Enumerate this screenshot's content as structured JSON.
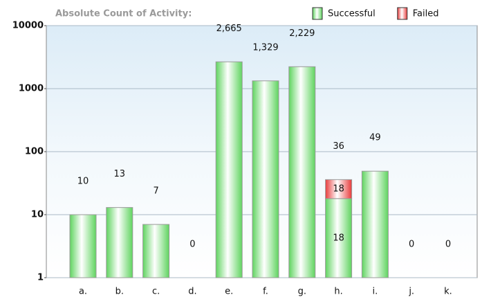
{
  "chart_data": {
    "type": "bar",
    "stacked": true,
    "log_scale": true,
    "title": "Absolute Count of Activity:",
    "categories": [
      "a.",
      "b.",
      "c.",
      "d.",
      "e.",
      "f.",
      "g.",
      "h.",
      "i.",
      "j.",
      "k."
    ],
    "series": [
      {
        "name": "Successful",
        "color": "#5fd45f",
        "values": [
          10,
          13,
          7,
          0,
          2665,
          1329,
          2229,
          18,
          49,
          0,
          0
        ],
        "value_labels": [
          null,
          null,
          null,
          null,
          null,
          null,
          null,
          "18",
          null,
          null,
          null
        ]
      },
      {
        "name": "Failed",
        "color": "#e83c3c",
        "values": [
          0,
          0,
          0,
          0,
          0,
          0,
          0,
          18,
          0,
          0,
          0
        ],
        "value_labels": [
          null,
          null,
          null,
          null,
          null,
          null,
          null,
          "18",
          null,
          null,
          null
        ]
      }
    ],
    "totals": [
      10,
      13,
      7,
      0,
      2665,
      1329,
      2229,
      36,
      49,
      0,
      0
    ],
    "total_labels": [
      "10",
      "13",
      "7",
      "0",
      "2,665",
      "1,329",
      "2,229",
      "36",
      "49",
      "0",
      "0"
    ],
    "ylim": [
      1,
      10000
    ],
    "yticks": [
      1,
      10,
      100,
      1000,
      10000
    ],
    "grid": true,
    "legend": "top-right"
  }
}
